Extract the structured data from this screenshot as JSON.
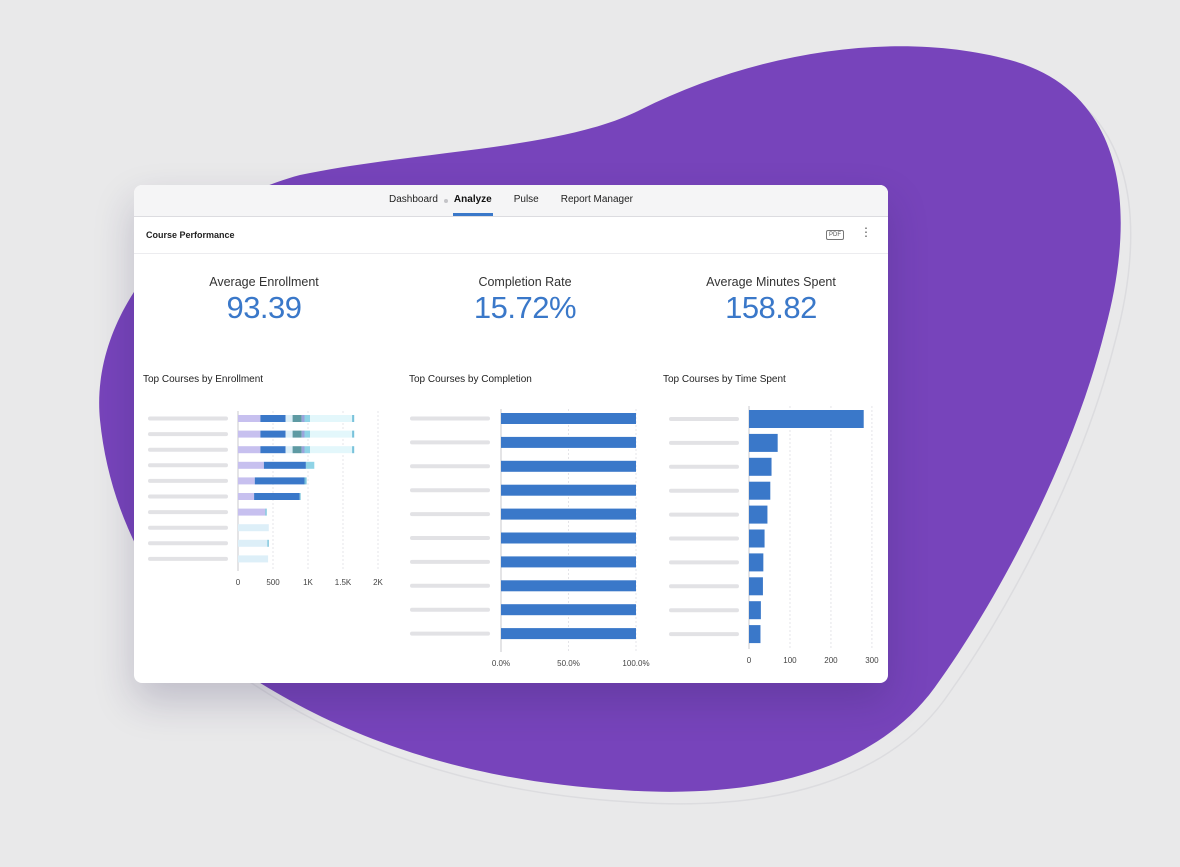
{
  "nav": {
    "tabs": [
      "Dashboard",
      "Analyze",
      "Pulse",
      "Report Manager"
    ],
    "active": "Analyze"
  },
  "report": {
    "title": "Course Performance",
    "pdf_label": "PDF",
    "more_label": "⋮"
  },
  "kpis": [
    {
      "label": "Average Enrollment",
      "value": "93.39"
    },
    {
      "label": "Completion Rate",
      "value": "15.72%"
    },
    {
      "label": "Average Minutes Spent",
      "value": "158.82"
    }
  ],
  "colors": {
    "accent": "#3a78c9",
    "blob": "#7744bb",
    "bar": "#3a78c9",
    "placeholder": "#e2e2e5"
  },
  "chart_data": [
    {
      "type": "bar",
      "stacked": true,
      "orientation": "horizontal",
      "title": "Top Courses by Enrollment",
      "xlim": [
        0,
        2000
      ],
      "ticks": [
        "0",
        "500",
        "1K",
        "1.5K",
        "2K"
      ],
      "tick_values": [
        0,
        500,
        1000,
        1500,
        2000
      ],
      "series_colors": [
        "#c7c0ef",
        "#3a78c9",
        "#ddeff8",
        "#5e9aa3",
        "#9aa4dc",
        "#8fd3e6",
        "#e3f7fb",
        "#79c3db"
      ],
      "rows": [
        [
          320,
          360,
          100,
          130,
          40,
          80,
          600,
          30
        ],
        [
          320,
          360,
          100,
          130,
          40,
          80,
          600,
          30
        ],
        [
          320,
          360,
          100,
          130,
          40,
          80,
          600,
          30
        ],
        [
          370,
          600,
          0,
          0,
          0,
          120,
          0,
          0
        ],
        [
          240,
          710,
          0,
          0,
          0,
          0,
          0,
          30
        ],
        [
          230,
          650,
          0,
          0,
          0,
          0,
          0,
          15
        ],
        [
          390,
          0,
          0,
          0,
          0,
          0,
          0,
          20
        ],
        [
          0,
          0,
          440,
          0,
          0,
          0,
          0,
          0
        ],
        [
          0,
          0,
          420,
          0,
          0,
          0,
          0,
          20
        ],
        [
          0,
          0,
          430,
          0,
          0,
          0,
          0,
          0
        ]
      ]
    },
    {
      "type": "bar",
      "orientation": "horizontal",
      "title": "Top Courses by Completion",
      "xlim": [
        0,
        1.2
      ],
      "ticks": [
        "0.0%",
        "50.0%",
        "100.0%"
      ],
      "tick_values": [
        0,
        0.5,
        1
      ],
      "values": [
        1,
        1,
        1,
        1,
        1,
        1,
        1,
        1,
        1,
        1
      ]
    },
    {
      "type": "bar",
      "orientation": "horizontal",
      "title": "Top Courses by Time Spent",
      "xlim": [
        0,
        310
      ],
      "ticks": [
        "0",
        "100",
        "200",
        "300"
      ],
      "tick_values": [
        0,
        100,
        200,
        300
      ],
      "values": [
        280,
        70,
        55,
        52,
        45,
        38,
        35,
        34,
        29,
        28
      ]
    }
  ]
}
